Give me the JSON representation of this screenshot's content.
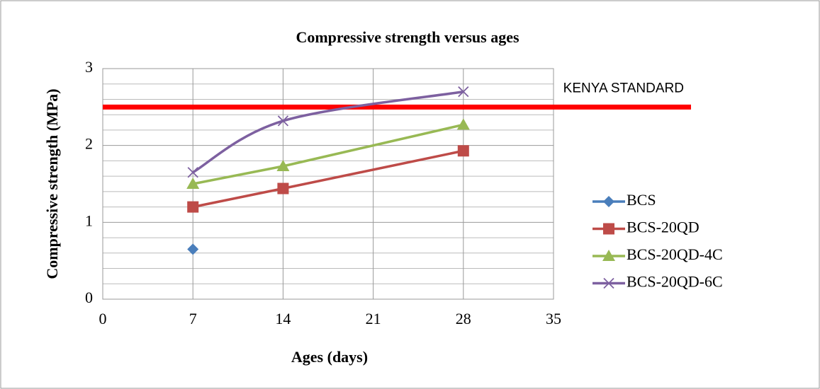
{
  "chart_data": {
    "type": "line",
    "title": "Compressive strength versus ages",
    "xlabel": "Ages (days)",
    "ylabel": "Compressive  strength (MPa)",
    "x": [
      7,
      14,
      28
    ],
    "series": [
      {
        "name": "BCS",
        "color": "#4a7ebb",
        "marker": "diamond",
        "smooth": false,
        "values": [
          0.65,
          null,
          null
        ]
      },
      {
        "name": "BCS-20QD",
        "color": "#be4b48",
        "marker": "square",
        "smooth": false,
        "values": [
          1.2,
          1.44,
          1.93
        ]
      },
      {
        "name": "BCS-20QD-4C",
        "color": "#98b954",
        "marker": "triangle",
        "smooth": false,
        "values": [
          1.5,
          1.73,
          2.27
        ]
      },
      {
        "name": "BCS-20QD-6C",
        "color": "#7d60a0",
        "marker": "x",
        "smooth": true,
        "values": [
          1.65,
          2.32,
          2.7
        ]
      }
    ],
    "reference_lines": [
      {
        "value": 2.5,
        "label": "KENYA STANDARD",
        "color": "#ff0000"
      }
    ],
    "xlim": [
      0,
      35
    ],
    "xticks": [
      0,
      7,
      14,
      21,
      28,
      35
    ],
    "ylim": [
      0,
      3
    ],
    "yticks": [
      0,
      1,
      2,
      3
    ],
    "yminor_ticks": [
      0.2,
      0.4,
      0.6,
      0.8,
      1.2,
      1.4,
      1.6,
      1.8,
      2.2,
      2.4,
      2.6,
      2.8
    ],
    "grid": true,
    "legend": "right"
  }
}
